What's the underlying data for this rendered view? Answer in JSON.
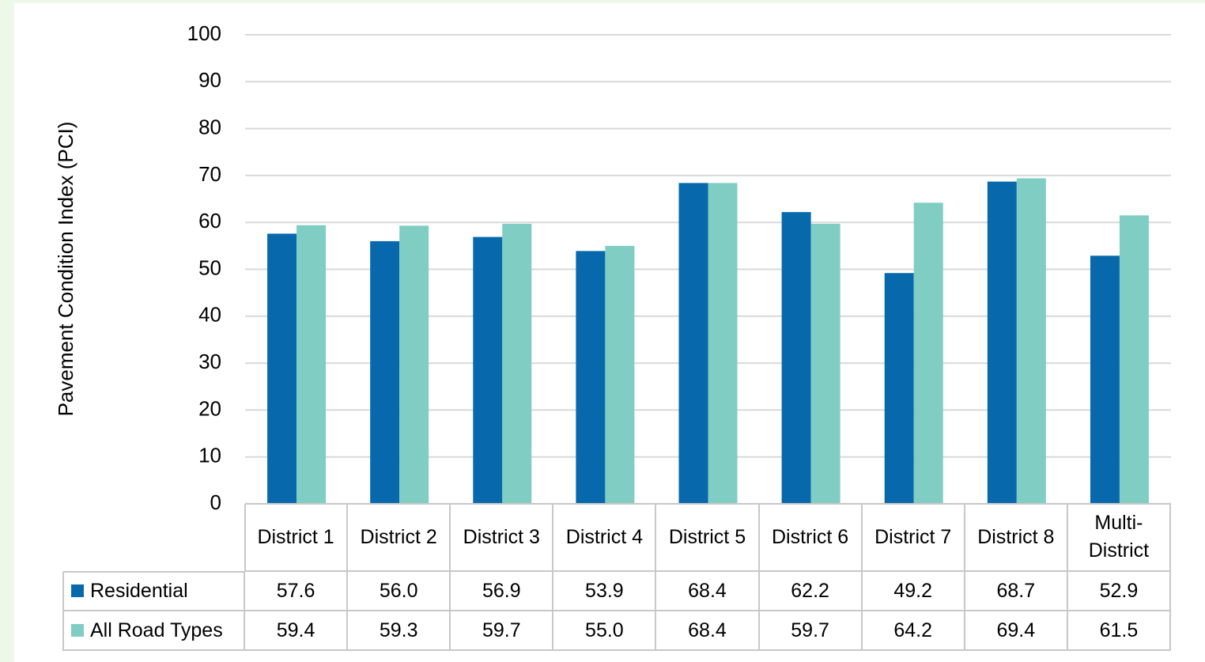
{
  "chart_data": {
    "type": "bar",
    "y_label": "Pavement Condition Index (PCI)",
    "categories": [
      "District 1",
      "District 2",
      "District 3",
      "District 4",
      "District 5",
      "District 6",
      "District 7",
      "District 8",
      "Multi-District"
    ],
    "series": [
      {
        "name": "Residential",
        "color": "#0868ac",
        "values": [
          57.6,
          56.0,
          56.9,
          53.9,
          68.4,
          62.2,
          49.2,
          68.7,
          52.9
        ],
        "value_labels": [
          "57.6",
          "56.0",
          "56.9",
          "53.9",
          "68.4",
          "62.2",
          "49.2",
          "68.7",
          "52.9"
        ]
      },
      {
        "name": "All Road Types",
        "color": "#7fcdc3",
        "values": [
          59.4,
          59.3,
          59.7,
          55.0,
          68.4,
          59.7,
          64.2,
          69.4,
          61.5
        ],
        "value_labels": [
          "59.4",
          "59.3",
          "59.7",
          "55.0",
          "68.4",
          "59.7",
          "64.2",
          "69.4",
          "61.5"
        ]
      }
    ],
    "ylim": [
      0,
      100
    ],
    "yticks": [
      0,
      10,
      20,
      30,
      40,
      50,
      60,
      70,
      80,
      90,
      100
    ],
    "grid": true
  }
}
